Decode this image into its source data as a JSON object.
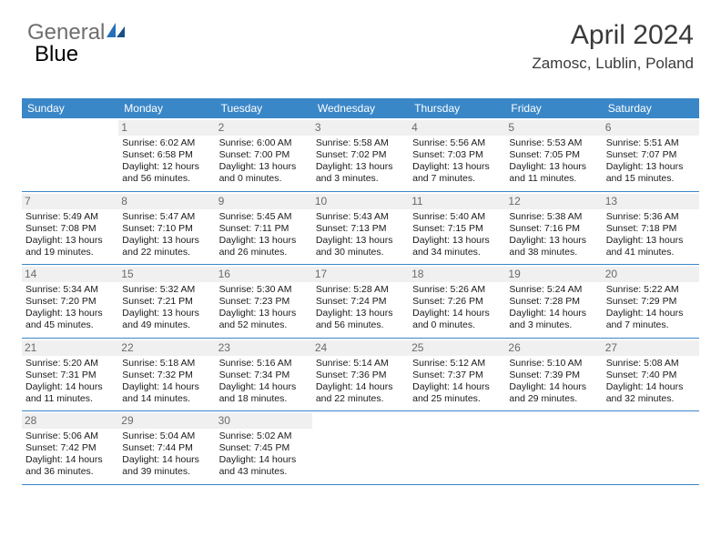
{
  "brand": {
    "part1": "General",
    "part2": "Blue"
  },
  "title": "April 2024",
  "location": "Zamosc, Lublin, Poland",
  "colors": {
    "header_bg": "#3a87c8",
    "header_text": "#ffffff",
    "brand_gray": "#6e6e6e",
    "brand_blue": "#2570b6",
    "daynum_bg": "#f0f0f0",
    "daynum_text": "#6a6a6a",
    "row_border": "#3a87c8"
  },
  "weekdays": [
    "Sunday",
    "Monday",
    "Tuesday",
    "Wednesday",
    "Thursday",
    "Friday",
    "Saturday"
  ],
  "weeks": [
    [
      {
        "n": "",
        "sr": "",
        "ss": "",
        "dl": ""
      },
      {
        "n": "1",
        "sr": "Sunrise: 6:02 AM",
        "ss": "Sunset: 6:58 PM",
        "dl": "Daylight: 12 hours and 56 minutes."
      },
      {
        "n": "2",
        "sr": "Sunrise: 6:00 AM",
        "ss": "Sunset: 7:00 PM",
        "dl": "Daylight: 13 hours and 0 minutes."
      },
      {
        "n": "3",
        "sr": "Sunrise: 5:58 AM",
        "ss": "Sunset: 7:02 PM",
        "dl": "Daylight: 13 hours and 3 minutes."
      },
      {
        "n": "4",
        "sr": "Sunrise: 5:56 AM",
        "ss": "Sunset: 7:03 PM",
        "dl": "Daylight: 13 hours and 7 minutes."
      },
      {
        "n": "5",
        "sr": "Sunrise: 5:53 AM",
        "ss": "Sunset: 7:05 PM",
        "dl": "Daylight: 13 hours and 11 minutes."
      },
      {
        "n": "6",
        "sr": "Sunrise: 5:51 AM",
        "ss": "Sunset: 7:07 PM",
        "dl": "Daylight: 13 hours and 15 minutes."
      }
    ],
    [
      {
        "n": "7",
        "sr": "Sunrise: 5:49 AM",
        "ss": "Sunset: 7:08 PM",
        "dl": "Daylight: 13 hours and 19 minutes."
      },
      {
        "n": "8",
        "sr": "Sunrise: 5:47 AM",
        "ss": "Sunset: 7:10 PM",
        "dl": "Daylight: 13 hours and 22 minutes."
      },
      {
        "n": "9",
        "sr": "Sunrise: 5:45 AM",
        "ss": "Sunset: 7:11 PM",
        "dl": "Daylight: 13 hours and 26 minutes."
      },
      {
        "n": "10",
        "sr": "Sunrise: 5:43 AM",
        "ss": "Sunset: 7:13 PM",
        "dl": "Daylight: 13 hours and 30 minutes."
      },
      {
        "n": "11",
        "sr": "Sunrise: 5:40 AM",
        "ss": "Sunset: 7:15 PM",
        "dl": "Daylight: 13 hours and 34 minutes."
      },
      {
        "n": "12",
        "sr": "Sunrise: 5:38 AM",
        "ss": "Sunset: 7:16 PM",
        "dl": "Daylight: 13 hours and 38 minutes."
      },
      {
        "n": "13",
        "sr": "Sunrise: 5:36 AM",
        "ss": "Sunset: 7:18 PM",
        "dl": "Daylight: 13 hours and 41 minutes."
      }
    ],
    [
      {
        "n": "14",
        "sr": "Sunrise: 5:34 AM",
        "ss": "Sunset: 7:20 PM",
        "dl": "Daylight: 13 hours and 45 minutes."
      },
      {
        "n": "15",
        "sr": "Sunrise: 5:32 AM",
        "ss": "Sunset: 7:21 PM",
        "dl": "Daylight: 13 hours and 49 minutes."
      },
      {
        "n": "16",
        "sr": "Sunrise: 5:30 AM",
        "ss": "Sunset: 7:23 PM",
        "dl": "Daylight: 13 hours and 52 minutes."
      },
      {
        "n": "17",
        "sr": "Sunrise: 5:28 AM",
        "ss": "Sunset: 7:24 PM",
        "dl": "Daylight: 13 hours and 56 minutes."
      },
      {
        "n": "18",
        "sr": "Sunrise: 5:26 AM",
        "ss": "Sunset: 7:26 PM",
        "dl": "Daylight: 14 hours and 0 minutes."
      },
      {
        "n": "19",
        "sr": "Sunrise: 5:24 AM",
        "ss": "Sunset: 7:28 PM",
        "dl": "Daylight: 14 hours and 3 minutes."
      },
      {
        "n": "20",
        "sr": "Sunrise: 5:22 AM",
        "ss": "Sunset: 7:29 PM",
        "dl": "Daylight: 14 hours and 7 minutes."
      }
    ],
    [
      {
        "n": "21",
        "sr": "Sunrise: 5:20 AM",
        "ss": "Sunset: 7:31 PM",
        "dl": "Daylight: 14 hours and 11 minutes."
      },
      {
        "n": "22",
        "sr": "Sunrise: 5:18 AM",
        "ss": "Sunset: 7:32 PM",
        "dl": "Daylight: 14 hours and 14 minutes."
      },
      {
        "n": "23",
        "sr": "Sunrise: 5:16 AM",
        "ss": "Sunset: 7:34 PM",
        "dl": "Daylight: 14 hours and 18 minutes."
      },
      {
        "n": "24",
        "sr": "Sunrise: 5:14 AM",
        "ss": "Sunset: 7:36 PM",
        "dl": "Daylight: 14 hours and 22 minutes."
      },
      {
        "n": "25",
        "sr": "Sunrise: 5:12 AM",
        "ss": "Sunset: 7:37 PM",
        "dl": "Daylight: 14 hours and 25 minutes."
      },
      {
        "n": "26",
        "sr": "Sunrise: 5:10 AM",
        "ss": "Sunset: 7:39 PM",
        "dl": "Daylight: 14 hours and 29 minutes."
      },
      {
        "n": "27",
        "sr": "Sunrise: 5:08 AM",
        "ss": "Sunset: 7:40 PM",
        "dl": "Daylight: 14 hours and 32 minutes."
      }
    ],
    [
      {
        "n": "28",
        "sr": "Sunrise: 5:06 AM",
        "ss": "Sunset: 7:42 PM",
        "dl": "Daylight: 14 hours and 36 minutes."
      },
      {
        "n": "29",
        "sr": "Sunrise: 5:04 AM",
        "ss": "Sunset: 7:44 PM",
        "dl": "Daylight: 14 hours and 39 minutes."
      },
      {
        "n": "30",
        "sr": "Sunrise: 5:02 AM",
        "ss": "Sunset: 7:45 PM",
        "dl": "Daylight: 14 hours and 43 minutes."
      },
      {
        "n": "",
        "sr": "",
        "ss": "",
        "dl": ""
      },
      {
        "n": "",
        "sr": "",
        "ss": "",
        "dl": ""
      },
      {
        "n": "",
        "sr": "",
        "ss": "",
        "dl": ""
      },
      {
        "n": "",
        "sr": "",
        "ss": "",
        "dl": ""
      }
    ]
  ]
}
